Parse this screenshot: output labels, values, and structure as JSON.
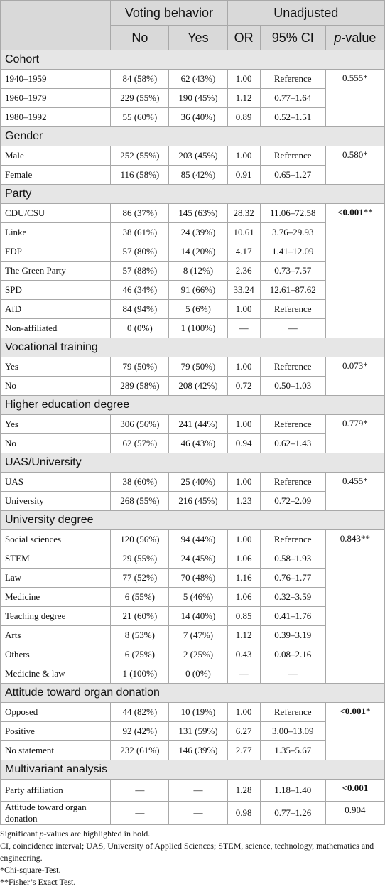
{
  "header": {
    "group_voting": "Voting behavior",
    "group_unadjusted": "Unadjusted",
    "col_no": "No",
    "col_yes": "Yes",
    "col_or": "OR",
    "col_ci": "95% CI",
    "col_p_italic": "p",
    "col_p_rest": "-value"
  },
  "sections": [
    {
      "title": "Cohort",
      "p": "0.555*",
      "p_bold": false,
      "rows": [
        {
          "label": "1940–1959",
          "no": "84 (58%)",
          "yes": "62 (43%)",
          "or": "1.00",
          "ci": "Reference"
        },
        {
          "label": "1960–1979",
          "no": "229 (55%)",
          "yes": "190 (45%)",
          "or": "1.12",
          "ci": "0.77–1.64"
        },
        {
          "label": "1980–1992",
          "no": "55 (60%)",
          "yes": "36 (40%)",
          "or": "0.89",
          "ci": "0.52–1.51"
        }
      ]
    },
    {
      "title": "Gender",
      "p": "0.580*",
      "p_bold": false,
      "rows": [
        {
          "label": "Male",
          "no": "252 (55%)",
          "yes": "203 (45%)",
          "or": "1.00",
          "ci": "Reference"
        },
        {
          "label": "Female",
          "no": "116 (58%)",
          "yes": "85 (42%)",
          "or": "0.91",
          "ci": "0.65–1.27"
        }
      ]
    },
    {
      "title": "Party",
      "p": "<0.001",
      "p_suffix": "**",
      "p_bold": true,
      "rows": [
        {
          "label": "CDU/CSU",
          "no": "86 (37%)",
          "yes": "145 (63%)",
          "or": "28.32",
          "ci": "11.06–72.58"
        },
        {
          "label": "Linke",
          "no": "38 (61%)",
          "yes": "24 (39%)",
          "or": "10.61",
          "ci": "3.76–29.93"
        },
        {
          "label": "FDP",
          "no": "57 (80%)",
          "yes": "14 (20%)",
          "or": "4.17",
          "ci": "1.41–12.09"
        },
        {
          "label": "The Green Party",
          "no": "57 (88%)",
          "yes": "8 (12%)",
          "or": "2.36",
          "ci": "0.73–7.57"
        },
        {
          "label": "SPD",
          "no": "46 (34%)",
          "yes": "91 (66%)",
          "or": "33.24",
          "ci": "12.61–87.62"
        },
        {
          "label": "AfD",
          "no": "84 (94%)",
          "yes": "5 (6%)",
          "or": "1.00",
          "ci": "Reference"
        },
        {
          "label": "Non-affiliated",
          "no": "0 (0%)",
          "yes": "1 (100%)",
          "or": "—",
          "ci": "—"
        }
      ]
    },
    {
      "title": "Vocational training",
      "p": "0.073*",
      "p_bold": false,
      "rows": [
        {
          "label": "Yes",
          "no": "79 (50%)",
          "yes": "79 (50%)",
          "or": "1.00",
          "ci": "Reference"
        },
        {
          "label": "No",
          "no": "289 (58%)",
          "yes": "208 (42%)",
          "or": "0.72",
          "ci": "0.50–1.03"
        }
      ]
    },
    {
      "title": "Higher education degree",
      "p": "0.779*",
      "p_bold": false,
      "rows": [
        {
          "label": "Yes",
          "no": "306 (56%)",
          "yes": "241 (44%)",
          "or": "1.00",
          "ci": "Reference"
        },
        {
          "label": "No",
          "no": "62 (57%)",
          "yes": "46 (43%)",
          "or": "0.94",
          "ci": "0.62–1.43"
        }
      ]
    },
    {
      "title": "UAS/University",
      "p": "0.455*",
      "p_bold": false,
      "rows": [
        {
          "label": "UAS",
          "no": "38 (60%)",
          "yes": "25 (40%)",
          "or": "1.00",
          "ci": "Reference"
        },
        {
          "label": "University",
          "no": "268 (55%)",
          "yes": "216 (45%)",
          "or": "1.23",
          "ci": "0.72–2.09"
        }
      ]
    },
    {
      "title": "University degree",
      "p": "0.843**",
      "p_bold": false,
      "rows": [
        {
          "label": "Social sciences",
          "no": "120 (56%)",
          "yes": "94 (44%)",
          "or": "1.00",
          "ci": "Reference"
        },
        {
          "label": "STEM",
          "no": "29 (55%)",
          "yes": "24 (45%)",
          "or": "1.06",
          "ci": "0.58–1.93"
        },
        {
          "label": "Law",
          "no": "77 (52%)",
          "yes": "70 (48%)",
          "or": "1.16",
          "ci": "0.76–1.77"
        },
        {
          "label": "Medicine",
          "no": "6 (55%)",
          "yes": "5 (46%)",
          "or": "1.06",
          "ci": "0.32–3.59"
        },
        {
          "label": "Teaching degree",
          "no": "21 (60%)",
          "yes": "14 (40%)",
          "or": "0.85",
          "ci": "0.41–1.76"
        },
        {
          "label": "Arts",
          "no": "8 (53%)",
          "yes": "7 (47%)",
          "or": "1.12",
          "ci": "0.39–3.19"
        },
        {
          "label": "Others",
          "no": "6 (75%)",
          "yes": "2 (25%)",
          "or": "0.43",
          "ci": "0.08–2.16"
        },
        {
          "label": "Medicine & law",
          "no": "1 (100%)",
          "yes": "0 (0%)",
          "or": "—",
          "ci": "—"
        }
      ]
    },
    {
      "title": "Attitude toward organ donation",
      "p": "<0.001",
      "p_suffix": "*",
      "p_bold": true,
      "rows": [
        {
          "label": "Opposed",
          "no": "44 (82%)",
          "yes": "10 (19%)",
          "or": "1.00",
          "ci": "Reference"
        },
        {
          "label": "Positive",
          "no": "92 (42%)",
          "yes": "131 (59%)",
          "or": "6.27",
          "ci": "3.00–13.09"
        },
        {
          "label": "No statement",
          "no": "232 (61%)",
          "yes": "146 (39%)",
          "or": "2.77",
          "ci": "1.35–5.67"
        }
      ]
    }
  ],
  "multivariant": {
    "title": "Multivariant analysis",
    "rows": [
      {
        "label": "Party affiliation",
        "no": "—",
        "yes": "—",
        "or": "1.28",
        "ci": "1.18–1.40",
        "p": "<0.001",
        "p_bold": true
      },
      {
        "label": "Attitude toward organ donation",
        "no": "—",
        "yes": "—",
        "or": "0.98",
        "ci": "0.77–1.26",
        "p": "0.904",
        "p_bold": false
      }
    ]
  },
  "notes": {
    "sig_pre": "Significant ",
    "sig_italic": "p",
    "sig_post": "-values are highlighted in bold.",
    "abbr": "CI, coincidence interval; UAS, University of Applied Sciences; STEM, science, technology, mathematics and engineering.",
    "chi": "*Chi-square-Test.",
    "fisher": "**Fisher’s Exact Test."
  }
}
